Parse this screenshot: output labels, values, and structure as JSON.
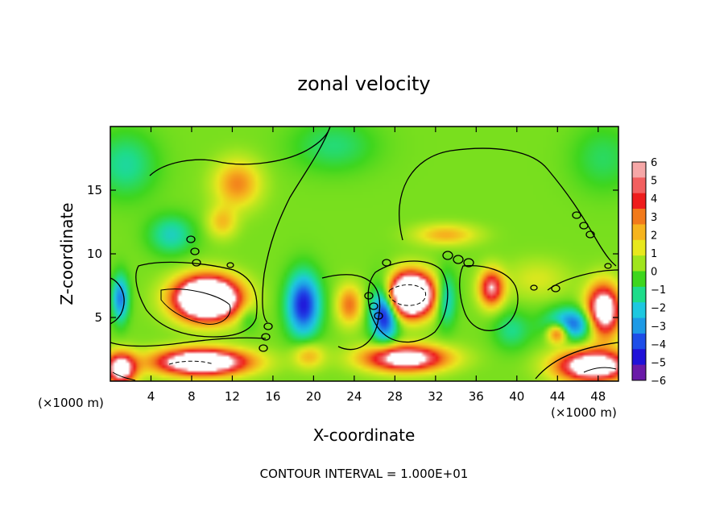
{
  "chart_data": {
    "type": "heatmap",
    "title": "zonal velocity",
    "xlabel": "X-coordinate",
    "ylabel": "Z-coordinate",
    "x_unit": "(×1000 m)",
    "x_unit_right": "(×1000 m)",
    "footnote": "CONTOUR INTERVAL = 1.000E+01",
    "xlim": [
      0,
      50
    ],
    "ylim": [
      0,
      20
    ],
    "x_ticks": [
      4,
      8,
      12,
      16,
      20,
      24,
      28,
      32,
      36,
      40,
      44,
      48
    ],
    "y_ticks": [
      5,
      10,
      15
    ],
    "colorbar": {
      "ticks": [
        6,
        5,
        4,
        3,
        2,
        1,
        0,
        -1,
        -2,
        -3,
        -4,
        -5,
        -6
      ],
      "colors": [
        "#f6a7a7",
        "#f25f5f",
        "#ee1c1c",
        "#f27a1b",
        "#f6b41e",
        "#e8e81e",
        "#a0e51e",
        "#3ed61e",
        "#1edc8a",
        "#1ec8e0",
        "#1e9ae6",
        "#1e4ee8",
        "#2012d8",
        "#6a1aa8"
      ]
    },
    "field": {
      "base": 0.6,
      "blobs": [
        {
          "x": 9.5,
          "y": 6.5,
          "amp": 14,
          "sx": 3.0,
          "sy": 1.6
        },
        {
          "x": 29.5,
          "y": 6.8,
          "amp": 14,
          "sx": 2.2,
          "sy": 1.6
        },
        {
          "x": 37.5,
          "y": 7.3,
          "amp": 6,
          "sx": 1.2,
          "sy": 1.4
        },
        {
          "x": 29.0,
          "y": 1.8,
          "amp": 8,
          "sx": 4.0,
          "sy": 1.0
        },
        {
          "x": 9.0,
          "y": 1.5,
          "amp": 10,
          "sx": 4.5,
          "sy": 1.0
        },
        {
          "x": 1.0,
          "y": 1.0,
          "amp": 8,
          "sx": 1.5,
          "sy": 1.2
        },
        {
          "x": 47.5,
          "y": 1.2,
          "amp": 9,
          "sx": 3.5,
          "sy": 1.2
        },
        {
          "x": 48.5,
          "y": 5.5,
          "amp": 9,
          "sx": 1.6,
          "sy": 2.0
        },
        {
          "x": 44.0,
          "y": 3.8,
          "amp": 5,
          "sx": 1.0,
          "sy": 0.8
        },
        {
          "x": 12.5,
          "y": 15.5,
          "amp": 3.2,
          "sx": 2.2,
          "sy": 1.8
        },
        {
          "x": 11.0,
          "y": 12.5,
          "amp": 2.2,
          "sx": 1.4,
          "sy": 1.2
        },
        {
          "x": 33.0,
          "y": 11.5,
          "amp": 2.5,
          "sx": 3.0,
          "sy": 0.8
        },
        {
          "x": 23.5,
          "y": 6.0,
          "amp": 3.5,
          "sx": 1.2,
          "sy": 1.5
        },
        {
          "x": 19.5,
          "y": 2.0,
          "amp": 2.5,
          "sx": 1.5,
          "sy": 1.0
        },
        {
          "x": 19.0,
          "y": 6.0,
          "amp": -5.5,
          "sx": 1.6,
          "sy": 2.4
        },
        {
          "x": 27.0,
          "y": 5.5,
          "amp": -6.5,
          "sx": 1.3,
          "sy": 2.2
        },
        {
          "x": 33.0,
          "y": 6.5,
          "amp": -3.0,
          "sx": 1.0,
          "sy": 2.0
        },
        {
          "x": 1.0,
          "y": 6.5,
          "amp": -4.0,
          "sx": 0.8,
          "sy": 1.8
        },
        {
          "x": 45.5,
          "y": 4.5,
          "amp": -4.5,
          "sx": 2.5,
          "sy": 1.2
        },
        {
          "x": 6.0,
          "y": 11.5,
          "amp": -2.2,
          "sx": 2.2,
          "sy": 1.5
        },
        {
          "x": 39.5,
          "y": 4.0,
          "amp": -1.6,
          "sx": 1.8,
          "sy": 1.5
        },
        {
          "x": 1.5,
          "y": 17.0,
          "amp": -1.8,
          "sx": 3.0,
          "sy": 2.5
        },
        {
          "x": 22.0,
          "y": 18.5,
          "amp": -1.4,
          "sx": 4.0,
          "sy": 2.0
        },
        {
          "x": 48.5,
          "y": 17.5,
          "amp": -1.2,
          "sx": 3.0,
          "sy": 2.5
        },
        {
          "x": 13.5,
          "y": 5.0,
          "amp": -1.2,
          "sx": 1.0,
          "sy": 1.0
        },
        {
          "x": 42.0,
          "y": 8.0,
          "amp": 1.2,
          "sx": 3.0,
          "sy": 1.5
        }
      ]
    }
  }
}
